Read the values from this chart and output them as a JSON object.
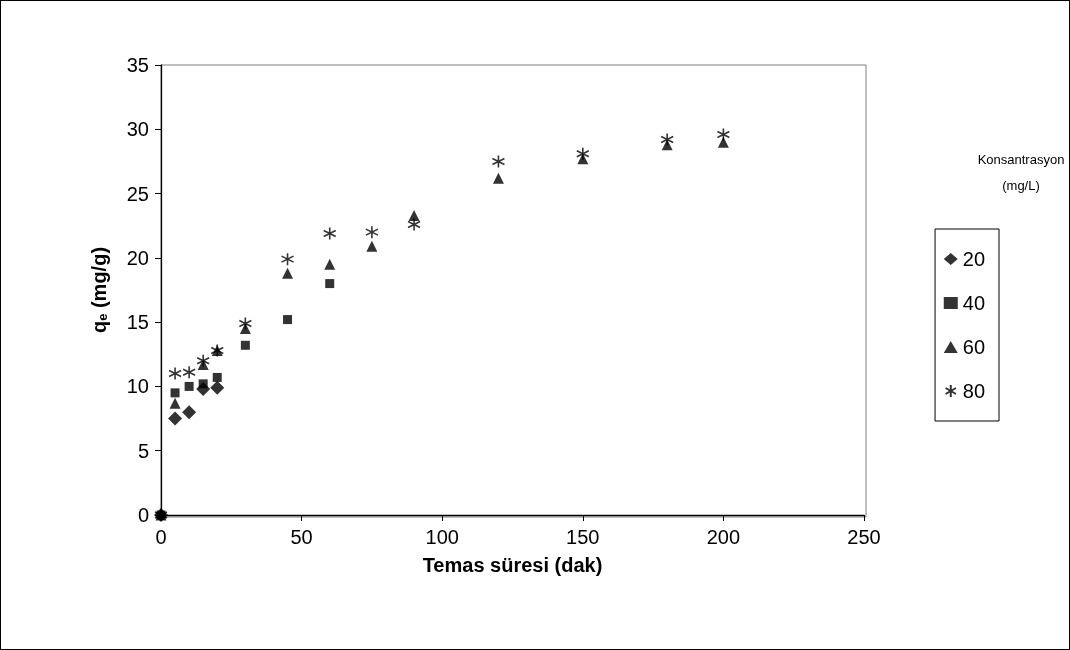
{
  "chart_data": {
    "type": "scatter",
    "xlabel": "Temas süresi (dak)",
    "ylabel": "q$_{e}$ (mg/g)",
    "legend_title": "Konsantrasyon (mg/L)",
    "legend": "right",
    "x": [
      0,
      5,
      10,
      15,
      20,
      30,
      45,
      60,
      75,
      90,
      120,
      150,
      180,
      200
    ],
    "series": [
      {
        "name": "20",
        "color": "#000000",
        "marker": "diamond",
        "values": [
          0,
          7.5,
          8.0,
          9.8,
          9.9,
          null,
          null,
          null,
          null,
          null,
          null,
          null,
          null,
          null
        ]
      },
      {
        "name": "40",
        "color": "#000000",
        "marker": "square",
        "values": [
          0,
          9.5,
          10.0,
          10.2,
          10.7,
          13.2,
          15.2,
          18.0,
          null,
          null,
          null,
          null,
          null,
          null
        ]
      },
      {
        "name": "60",
        "color": "#000000",
        "marker": "triangle",
        "values": [
          0,
          8.7,
          null,
          11.7,
          12.8,
          14.5,
          18.8,
          19.5,
          20.9,
          23.3,
          26.2,
          27.7,
          28.8,
          29.0
        ]
      },
      {
        "name": "80",
        "color": "#000000",
        "marker": "cross",
        "values": [
          0,
          11.0,
          11.1,
          12.0,
          12.8,
          14.9,
          19.9,
          21.9,
          22.0,
          22.6,
          27.5,
          28.1,
          29.2,
          29.6
        ]
      }
    ],
    "xlim": [
      0,
      250
    ],
    "xticks": [
      0,
      50,
      100,
      150,
      200,
      250
    ],
    "ylim": [
      0,
      35
    ],
    "yticks": [
      0,
      5,
      10,
      15,
      20,
      25,
      30,
      35
    ],
    "grid": false
  }
}
